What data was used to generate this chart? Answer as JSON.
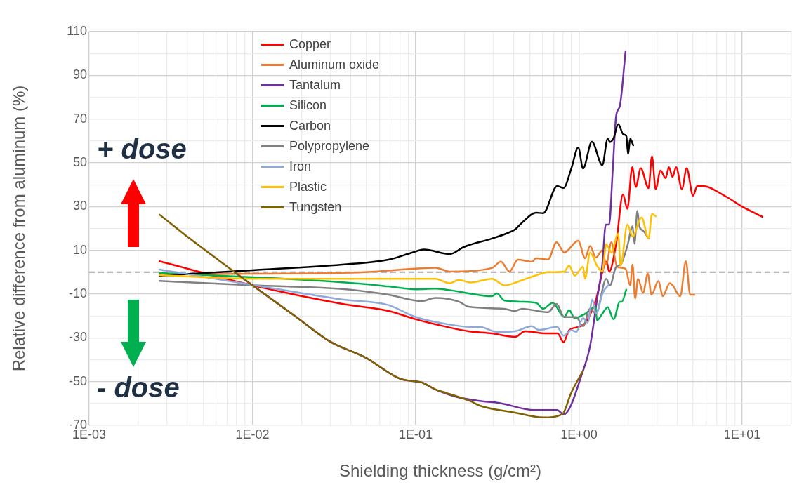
{
  "chart_data": {
    "type": "line",
    "xlabel": "Shielding thickness (g/cm²)",
    "ylabel": "Relative difference from aluminum (%)",
    "annotations": [
      "+ dose",
      "- dose"
    ],
    "log": "x",
    "grid": true,
    "legend": "top left",
    "marker": "none",
    "line_style": "solid",
    "xlim": [
      0.001,
      20
    ],
    "xticks": [
      {
        "value": 0.001,
        "label": "1E-03"
      },
      {
        "value": 0.002,
        "label": null
      },
      {
        "value": 0.003,
        "label": null
      },
      {
        "value": 0.004,
        "label": null
      },
      {
        "value": 0.005,
        "label": null
      },
      {
        "value": 0.006,
        "label": null
      },
      {
        "value": 0.007,
        "label": null
      },
      {
        "value": 0.008,
        "label": null
      },
      {
        "value": 0.009,
        "label": null
      },
      {
        "value": 0.01,
        "label": "1E-02"
      },
      {
        "value": 0.02,
        "label": null
      },
      {
        "value": 0.03,
        "label": null
      },
      {
        "value": 0.04,
        "label": null
      },
      {
        "value": 0.05,
        "label": null
      },
      {
        "value": 0.06,
        "label": null
      },
      {
        "value": 0.07,
        "label": null
      },
      {
        "value": 0.08,
        "label": null
      },
      {
        "value": 0.09,
        "label": null
      },
      {
        "value": 0.1,
        "label": "1E-01"
      },
      {
        "value": 0.2,
        "label": null
      },
      {
        "value": 0.3,
        "label": null
      },
      {
        "value": 0.4,
        "label": null
      },
      {
        "value": 0.5,
        "label": null
      },
      {
        "value": 0.6,
        "label": null
      },
      {
        "value": 0.7,
        "label": null
      },
      {
        "value": 0.8,
        "label": null
      },
      {
        "value": 0.9,
        "label": null
      },
      {
        "value": 1,
        "label": "1E+00"
      },
      {
        "value": 2,
        "label": null
      },
      {
        "value": 3,
        "label": null
      },
      {
        "value": 4,
        "label": null
      },
      {
        "value": 5,
        "label": null
      },
      {
        "value": 6,
        "label": null
      },
      {
        "value": 7,
        "label": null
      },
      {
        "value": 8,
        "label": null
      },
      {
        "value": 9,
        "label": null
      },
      {
        "value": 10,
        "label": "1E+01"
      },
      {
        "value": 20,
        "label": null
      }
    ],
    "ylim": [
      -70,
      110
    ],
    "yticks": [
      -70,
      {
        "value": -60,
        "label": null
      },
      -50,
      {
        "value": -40,
        "label": null
      },
      -30,
      {
        "value": -20,
        "label": null
      },
      -10,
      {
        "value": 0,
        "label": null
      },
      10,
      {
        "value": 20,
        "label": null
      },
      30,
      {
        "value": 40,
        "label": null
      },
      50,
      {
        "value": 60,
        "label": null
      },
      70,
      {
        "value": 80,
        "label": null
      },
      90,
      {
        "value": 100,
        "label": null
      },
      110
    ],
    "ref_lines": [
      {
        "axis": "y",
        "value": 0,
        "color": "#a6a6a6",
        "line_style": "dashed"
      }
    ],
    "series": [
      {
        "name": "Copper",
        "color": "#ff0000",
        "x": [
          0.0027,
          0.01,
          0.0355,
          0.068,
          0.1,
          0.132,
          0.211,
          0.293,
          0.406,
          0.468,
          0.63,
          0.74,
          0.805,
          0.87,
          1.0,
          1.1,
          1.26,
          1.48,
          1.53,
          1.69,
          1.86,
          1.98,
          2.12,
          2.23,
          2.39,
          2.67,
          2.8,
          2.95,
          3.16,
          3.39,
          3.56,
          3.74,
          3.94,
          4.27,
          4.57,
          5.0,
          5.3,
          5.7,
          7.94,
          10.1,
          13.3
        ],
        "values": [
          5,
          -6,
          -14.5,
          -17.7,
          -21.5,
          -23.8,
          -27,
          -28,
          -29.6,
          -27,
          -28,
          -28,
          -32,
          -26.6,
          -25,
          -23,
          -13.5,
          4.8,
          0.3,
          13,
          35.6,
          29,
          48,
          39,
          47.5,
          38.5,
          53,
          38,
          46.5,
          43,
          48,
          43.6,
          48,
          38,
          47.5,
          35,
          39.4,
          39.4,
          34.6,
          29.8,
          25.3
        ]
      },
      {
        "name": "Aluminum oxide",
        "color": "#ed7d31",
        "x": [
          0.0027,
          0.01,
          0.0492,
          0.112,
          0.132,
          0.162,
          0.293,
          0.333,
          0.375,
          0.423,
          0.515,
          0.547,
          0.647,
          0.729,
          0.813,
          0.99,
          1.09,
          1.17,
          1.27,
          1.39,
          1.47,
          1.58,
          1.71,
          1.93,
          2.06,
          2.13,
          2.21,
          2.3,
          2.47,
          2.64,
          2.78,
          3.07,
          3.26,
          3.6,
          3.75,
          4.17,
          4.52,
          4.8,
          5.09
        ],
        "values": [
          -1,
          -0.7,
          0,
          1.9,
          2,
          0.3,
          1.9,
          4.8,
          0.3,
          5.7,
          4.8,
          6.4,
          5.8,
          13.7,
          9,
          14.4,
          6.4,
          12,
          6.7,
          10,
          3.5,
          13.7,
          2.5,
          1.6,
          -6,
          3.5,
          -12,
          -3,
          -9.4,
          -0.7,
          -10.3,
          -4,
          -11,
          -5,
          -6,
          -11,
          5,
          -10.3,
          -10.3
        ]
      },
      {
        "name": "Tantalum",
        "color": "#7030a0",
        "x": [
          0.0077,
          0.01,
          0.0182,
          0.03,
          0.0492,
          0.0807,
          0.109,
          0.132,
          0.178,
          0.257,
          0.322,
          0.53,
          0.736,
          0.805,
          1.06,
          1.17,
          1.29,
          1.39,
          1.46,
          1.53,
          1.61,
          1.69,
          1.78,
          1.93
        ],
        "values": [
          0.3,
          -6,
          -20,
          -31.8,
          -39,
          -48.8,
          -50.4,
          -53.6,
          -57,
          -59,
          -59.7,
          -63,
          -63,
          -65,
          -45,
          -33.7,
          -12.5,
          3.5,
          21.8,
          21.8,
          46.5,
          71.5,
          76,
          101
        ]
      },
      {
        "name": "Silicon",
        "color": "#00b050",
        "x": [
          0.0027,
          0.01,
          0.0355,
          0.068,
          0.1,
          0.132,
          0.184,
          0.211,
          0.293,
          0.314,
          0.35,
          0.449,
          0.547,
          0.604,
          0.69,
          0.813,
          0.871,
          0.943,
          1.09,
          1.26,
          1.29,
          1.39,
          1.5,
          1.63,
          1.78,
          1.83,
          1.95
        ],
        "values": [
          -0.4,
          -2.3,
          -4.6,
          -6.5,
          -7.8,
          -7.5,
          -8.9,
          -9.7,
          -11,
          -9.7,
          -13,
          -13.5,
          -14,
          -16.7,
          -14,
          -20.5,
          -17.4,
          -21,
          -19,
          -15.8,
          -22,
          -19,
          -16,
          -21.5,
          -13.5,
          -13.5,
          -8
        ]
      },
      {
        "name": "Carbon",
        "color": "#000000",
        "x": [
          0.0027,
          0.01,
          0.0355,
          0.068,
          0.0955,
          0.112,
          0.162,
          0.197,
          0.293,
          0.357,
          0.406,
          0.449,
          0.547,
          0.604,
          0.736,
          0.805,
          0.898,
          0.99,
          1.06,
          1.2,
          1.39,
          1.5,
          1.55,
          1.63,
          1.74,
          1.87,
          1.95,
          2.0,
          2.06,
          2.15
        ],
        "values": [
          -1.6,
          0.9,
          3.5,
          5.7,
          9,
          10.4,
          8.3,
          11.5,
          15.4,
          17.6,
          19.5,
          22.7,
          27.2,
          27,
          39.4,
          38.5,
          47.4,
          57,
          47.4,
          59.6,
          49,
          61,
          59.5,
          61.3,
          67.7,
          63,
          62.3,
          54,
          61,
          58
        ]
      },
      {
        "name": "Polypropylene",
        "color": "#808080",
        "x": [
          0.0027,
          0.01,
          0.0355,
          0.068,
          0.109,
          0.132,
          0.184,
          0.211,
          0.347,
          0.406,
          0.449,
          0.647,
          0.729,
          0.813,
          0.962,
          1.06,
          1.17,
          1.27,
          1.47,
          1.55,
          1.69,
          1.8,
          1.98,
          2.13,
          2.19,
          2.28,
          2.35,
          2.47,
          2.67
        ],
        "values": [
          -4,
          -6,
          -7.7,
          -10.3,
          -13.2,
          -11.8,
          -13.5,
          -15.8,
          -16.7,
          -17.7,
          -16.7,
          -18.3,
          -14.5,
          -20.5,
          -20.5,
          -24.7,
          -16.7,
          -19,
          -3,
          -6,
          2.5,
          3.5,
          12,
          21,
          13,
          28,
          20.8,
          19,
          15.4
        ]
      },
      {
        "name": "Iron",
        "color": "#8eaadb",
        "x": [
          0.0027,
          0.01,
          0.0355,
          0.068,
          0.1,
          0.157,
          0.217,
          0.247,
          0.314,
          0.406,
          0.515,
          0.567,
          0.736,
          0.805,
          0.898,
          0.962,
          1.06,
          1.13,
          1.21,
          1.27,
          1.4,
          1.53
        ],
        "values": [
          1.2,
          -5.8,
          -12.5,
          -15,
          -20.5,
          -23.8,
          -25,
          -25,
          -27.3,
          -27,
          -24.7,
          -26.4,
          -25,
          -29,
          -26.5,
          -27.3,
          -21,
          -23,
          -12.5,
          -19,
          -9.4,
          -5.5
        ]
      },
      {
        "name": "Plastic",
        "color": "#ffc000",
        "x": [
          0.0027,
          0.01,
          0.0492,
          0.132,
          0.162,
          0.184,
          0.217,
          0.293,
          0.35,
          0.435,
          0.547,
          0.647,
          0.813,
          0.871,
          0.943,
          1.06,
          1.09,
          1.17,
          1.29,
          1.39,
          1.47,
          1.58,
          1.74,
          1.8,
          1.98,
          2.13,
          2.42,
          2.67,
          2.8,
          2.95
        ],
        "values": [
          -1.3,
          -3,
          -3,
          -3,
          -5,
          -3.5,
          -4.7,
          -3,
          -6,
          -4,
          -1.4,
          0,
          0.3,
          3,
          -1.6,
          2.5,
          -3,
          9,
          3,
          0.3,
          12.8,
          9,
          17.6,
          3,
          21.8,
          16.3,
          25,
          15.4,
          26.6,
          25.6
        ]
      },
      {
        "name": "Tungsten",
        "color": "#806000",
        "x": [
          0.0027,
          0.00413,
          0.0077,
          0.01,
          0.0182,
          0.03,
          0.0492,
          0.0807,
          0.109,
          0.132,
          0.151,
          0.217,
          0.247,
          0.406,
          0.604,
          0.789,
          0.898,
          1.06
        ],
        "values": [
          26.3,
          15.4,
          0.3,
          -6,
          -20,
          -31.8,
          -39,
          -48.8,
          -50.4,
          -53.6,
          -55,
          -59,
          -61,
          -64.2,
          -66.4,
          -65,
          -55,
          -45
        ]
      }
    ]
  }
}
